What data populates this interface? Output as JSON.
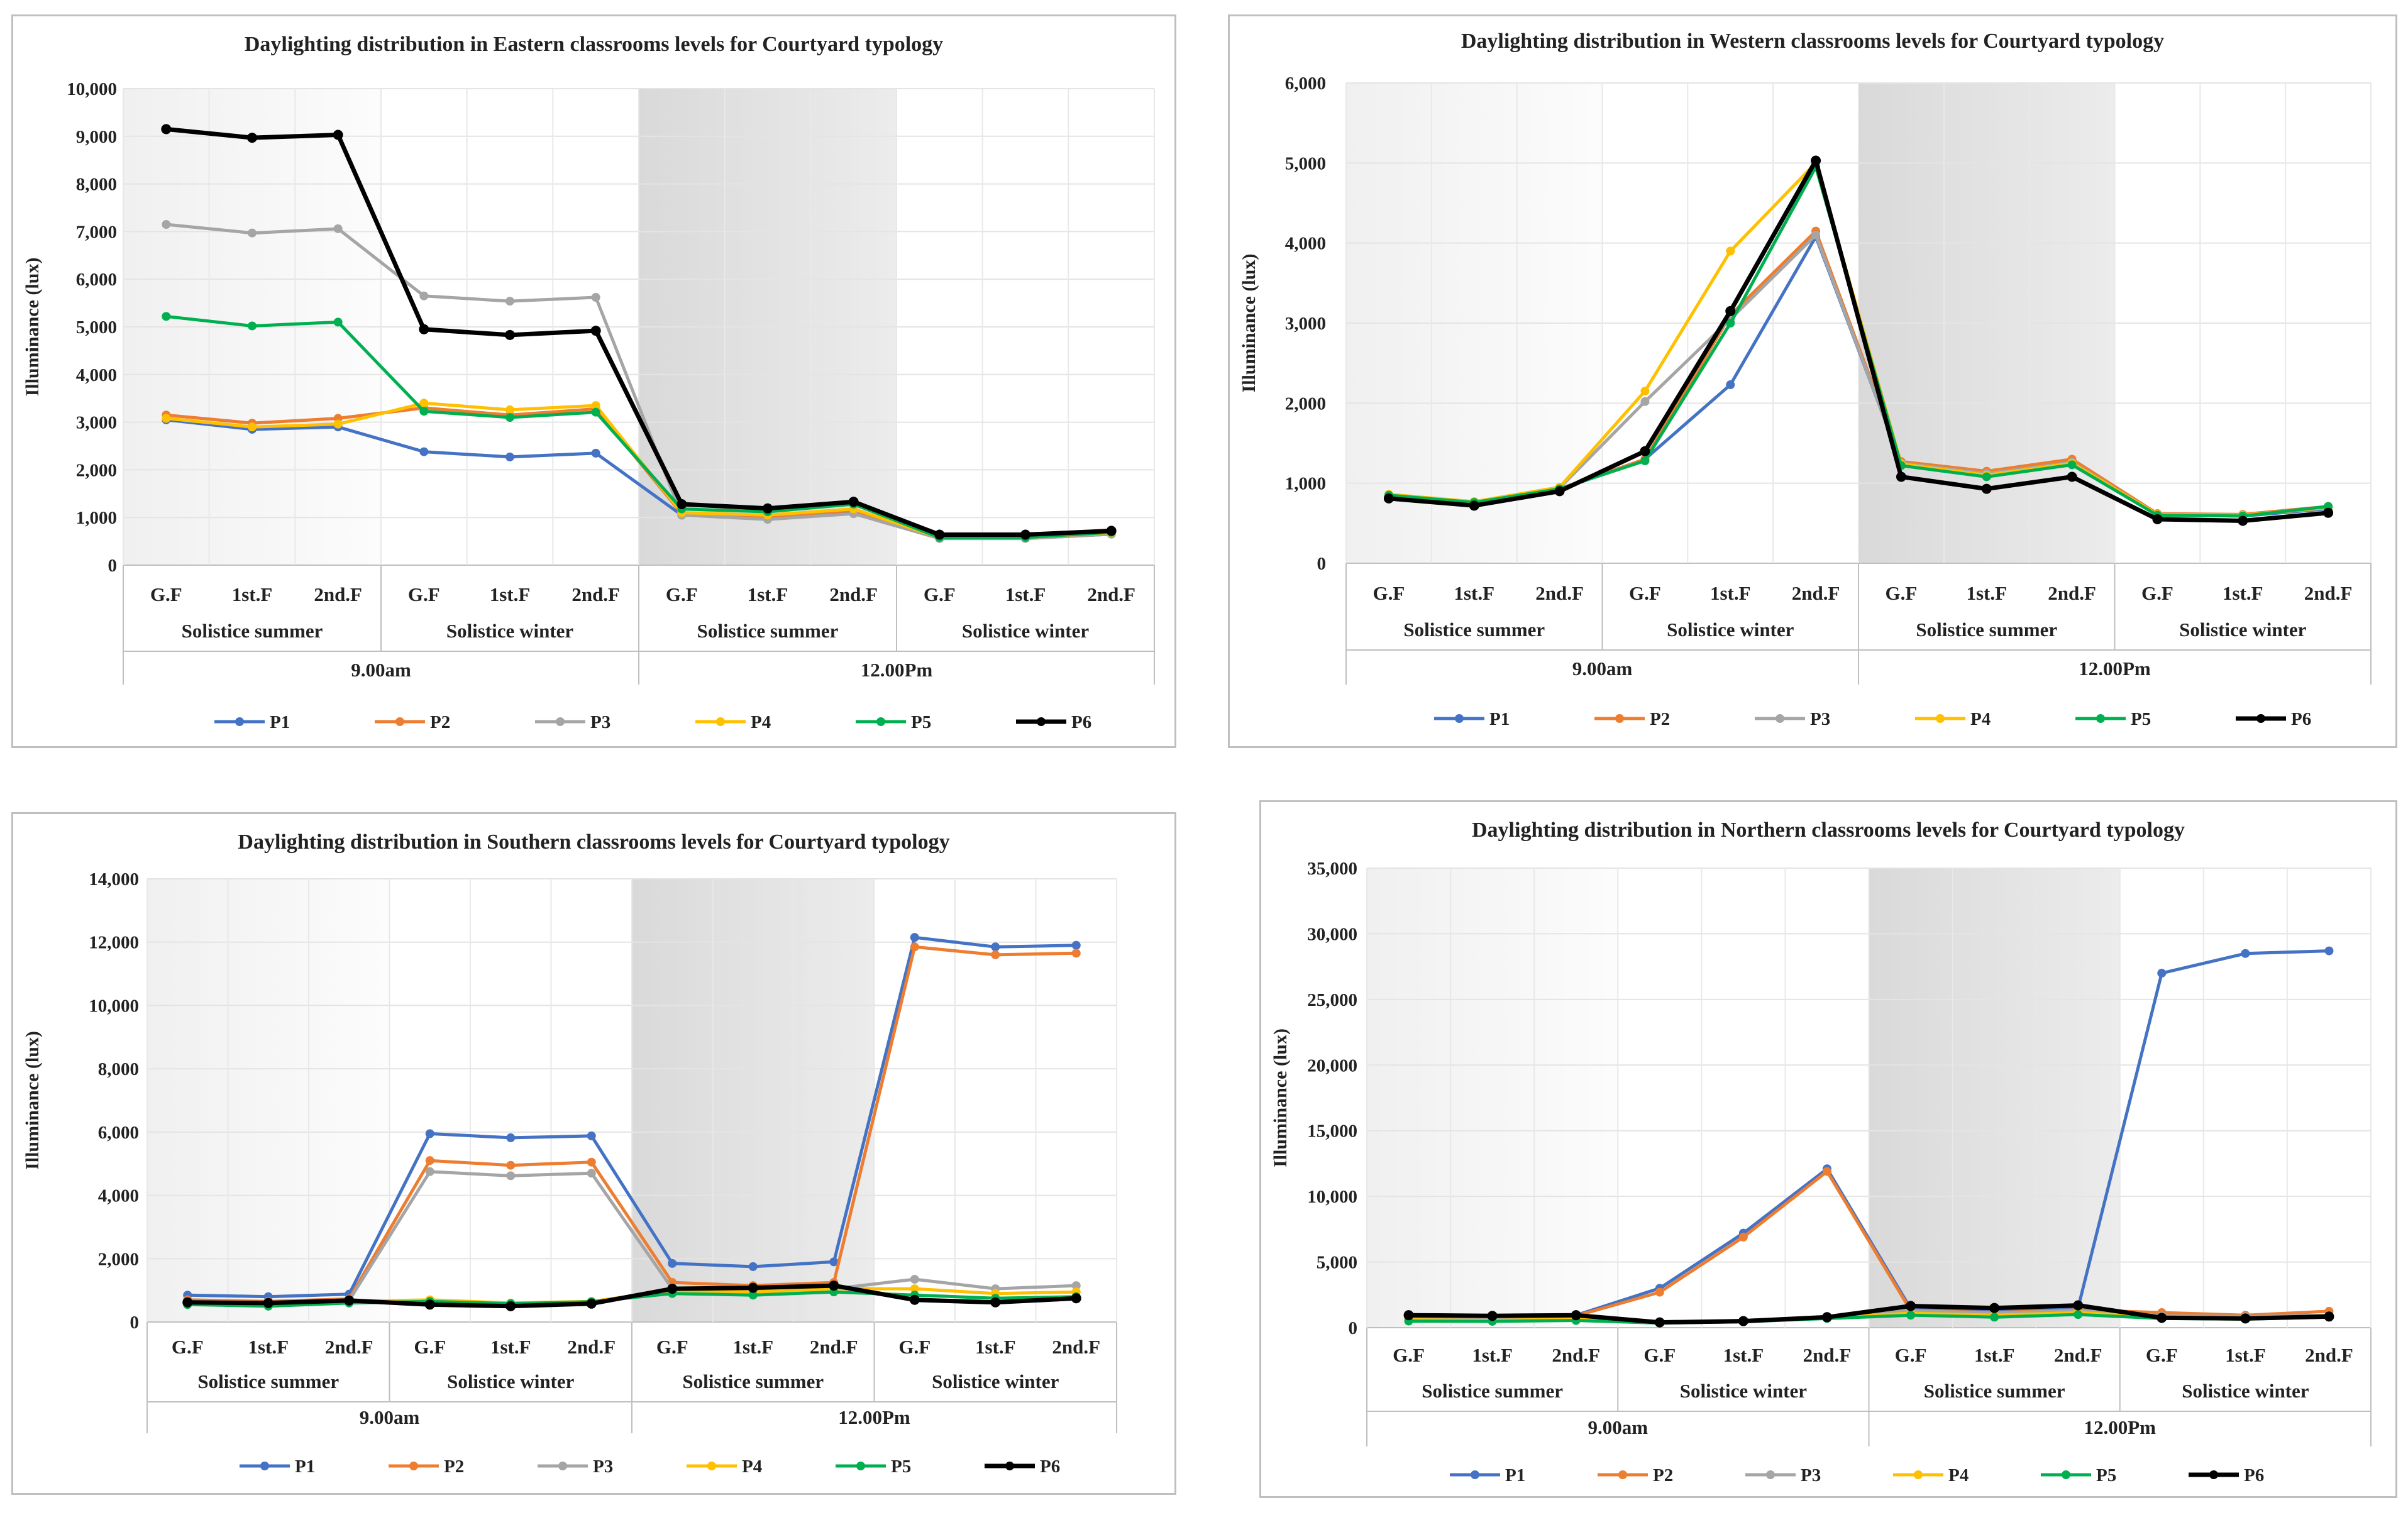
{
  "legend_labels": [
    "P1",
    "P2",
    "P3",
    "P4",
    "P5",
    "P6"
  ],
  "series_colors": [
    "#4472c4",
    "#ed7d31",
    "#a5a5a5",
    "#ffc000",
    "#00b050",
    "#000000"
  ],
  "floor_labels": [
    "G.F",
    "1st.F",
    "2nd.F"
  ],
  "season_labels": [
    "Solistice summer",
    "Solistice winter"
  ],
  "time_labels": [
    "9.00am",
    "12.00Pm"
  ],
  "chart_data": [
    {
      "type": "line",
      "title": "Daylighting distribution in Eastern classrooms levels for Courtyard  typology",
      "ylabel": "Illuminance (lux)",
      "ylim": [
        0,
        10000
      ],
      "ytick_step": 1000,
      "yticks": [
        "0",
        "1,000",
        "2,000",
        "3,000",
        "4,000",
        "5,000",
        "6,000",
        "7,000",
        "8,000",
        "9,000",
        "10,000"
      ],
      "x": [
        "G.F",
        "1st.F",
        "2nd.F",
        "G.F",
        "1st.F",
        "2nd.F",
        "G.F",
        "1st.F",
        "2nd.F",
        "G.F",
        "1st.F",
        "2nd.F"
      ],
      "series": [
        {
          "name": "P1",
          "values": [
            3050,
            2850,
            2900,
            2380,
            2270,
            2350,
            1050,
            980,
            1100,
            560,
            560,
            650
          ]
        },
        {
          "name": "P2",
          "values": [
            3150,
            2980,
            3080,
            3300,
            3150,
            3280,
            1080,
            1020,
            1150,
            570,
            570,
            670
          ]
        },
        {
          "name": "P3",
          "values": [
            7150,
            6970,
            7060,
            5650,
            5540,
            5620,
            1050,
            960,
            1080,
            560,
            560,
            650
          ]
        },
        {
          "name": "P4",
          "values": [
            3080,
            2900,
            2960,
            3400,
            3260,
            3350,
            1100,
            1050,
            1180,
            580,
            580,
            680
          ]
        },
        {
          "name": "P5",
          "values": [
            5220,
            5020,
            5100,
            3230,
            3100,
            3210,
            1180,
            1120,
            1280,
            580,
            580,
            690
          ]
        },
        {
          "name": "P6",
          "values": [
            9150,
            8970,
            9030,
            4950,
            4830,
            4920,
            1280,
            1190,
            1330,
            640,
            640,
            720
          ]
        }
      ]
    },
    {
      "type": "line",
      "title": "Daylighting distribution in Western classrooms levels for Courtyard  typology",
      "ylabel": "Illuminance (lux)",
      "ylim": [
        0,
        6000
      ],
      "ytick_step": 1000,
      "yticks": [
        "0",
        "1,000",
        "2,000",
        "3,000",
        "4,000",
        "5,000",
        "6,000"
      ],
      "x": [
        "G.F",
        "1st.F",
        "2nd.F",
        "G.F",
        "1st.F",
        "2nd.F",
        "G.F",
        "1st.F",
        "2nd.F",
        "G.F",
        "1st.F",
        "2nd.F"
      ],
      "series": [
        {
          "name": "P1",
          "values": [
            830,
            740,
            920,
            1300,
            2230,
            4080,
            1250,
            1130,
            1270,
            600,
            590,
            680
          ]
        },
        {
          "name": "P2",
          "values": [
            840,
            750,
            930,
            1300,
            3100,
            4150,
            1270,
            1150,
            1300,
            620,
            610,
            710
          ]
        },
        {
          "name": "P3",
          "values": [
            850,
            760,
            940,
            2020,
            3050,
            4100,
            1250,
            1120,
            1260,
            610,
            600,
            690
          ]
        },
        {
          "name": "P4",
          "values": [
            860,
            770,
            950,
            2150,
            3900,
            5000,
            1240,
            1100,
            1250,
            610,
            600,
            700
          ]
        },
        {
          "name": "P5",
          "values": [
            850,
            760,
            930,
            1280,
            3000,
            4950,
            1220,
            1080,
            1230,
            600,
            590,
            710
          ]
        },
        {
          "name": "P6",
          "values": [
            810,
            720,
            900,
            1400,
            3150,
            5030,
            1080,
            930,
            1080,
            550,
            530,
            630
          ]
        }
      ]
    },
    {
      "type": "line",
      "title": "Daylighting distribution in Southern classrooms levels for Courtyard  typology",
      "ylabel": "Illuminance (lux)",
      "ylim": [
        0,
        14000
      ],
      "ytick_step": 2000,
      "yticks": [
        "0",
        "2,000",
        "4,000",
        "6,000",
        "8,000",
        "10,000",
        "12,000",
        "14,000"
      ],
      "x": [
        "G.F",
        "1st.F",
        "2nd.F",
        "G.F",
        "1st.F",
        "2nd.F",
        "G.F",
        "1st.F",
        "2nd.F",
        "G.F",
        "1st.F",
        "2nd.F"
      ],
      "series": [
        {
          "name": "P1",
          "values": [
            850,
            800,
            880,
            5950,
            5820,
            5880,
            1850,
            1750,
            1900,
            12150,
            11850,
            11900
          ]
        },
        {
          "name": "P2",
          "values": [
            700,
            650,
            730,
            5100,
            4950,
            5050,
            1250,
            1150,
            1250,
            11850,
            11600,
            11650
          ]
        },
        {
          "name": "P3",
          "values": [
            650,
            600,
            680,
            4750,
            4620,
            4700,
            1050,
            1000,
            1050,
            1350,
            1050,
            1150
          ]
        },
        {
          "name": "P4",
          "values": [
            600,
            550,
            650,
            700,
            600,
            650,
            1000,
            950,
            1050,
            1050,
            900,
            950
          ]
        },
        {
          "name": "P5",
          "values": [
            550,
            500,
            600,
            650,
            580,
            640,
            900,
            850,
            950,
            850,
            750,
            800
          ]
        },
        {
          "name": "P6",
          "values": [
            620,
            600,
            680,
            550,
            500,
            580,
            1050,
            1080,
            1150,
            700,
            620,
            750
          ]
        }
      ]
    },
    {
      "type": "line",
      "title": "Daylighting distribution in Northern classrooms levels for Courtyard  typology",
      "ylabel": "Illuminance (lux)",
      "ylim": [
        0,
        35000
      ],
      "ytick_step": 5000,
      "yticks": [
        "0",
        "5,000",
        "10,000",
        "15,000",
        "20,000",
        "25,000",
        "30,000",
        "35,000"
      ],
      "x": [
        "G.F",
        "1st.F",
        "2nd.F",
        "G.F",
        "1st.F",
        "2nd.F",
        "G.F",
        "1st.F",
        "2nd.F",
        "G.F",
        "1st.F",
        "2nd.F"
      ],
      "series": [
        {
          "name": "P1",
          "values": [
            900,
            850,
            950,
            3000,
            7200,
            12100,
            1450,
            1300,
            1500,
            27000,
            28500,
            28700
          ]
        },
        {
          "name": "P2",
          "values": [
            850,
            800,
            900,
            2700,
            6900,
            11900,
            1300,
            1150,
            1350,
            1150,
            950,
            1250
          ]
        },
        {
          "name": "P3",
          "values": [
            700,
            650,
            750,
            450,
            550,
            800,
            1300,
            1100,
            1300,
            900,
            850,
            950
          ]
        },
        {
          "name": "P4",
          "values": [
            600,
            550,
            650,
            400,
            500,
            750,
            1100,
            950,
            1150,
            800,
            700,
            850
          ]
        },
        {
          "name": "P5",
          "values": [
            500,
            480,
            550,
            350,
            450,
            700,
            950,
            800,
            1000,
            700,
            650,
            800
          ]
        },
        {
          "name": "P6",
          "values": [
            950,
            900,
            950,
            400,
            500,
            800,
            1650,
            1500,
            1700,
            750,
            700,
            850
          ]
        }
      ]
    }
  ]
}
